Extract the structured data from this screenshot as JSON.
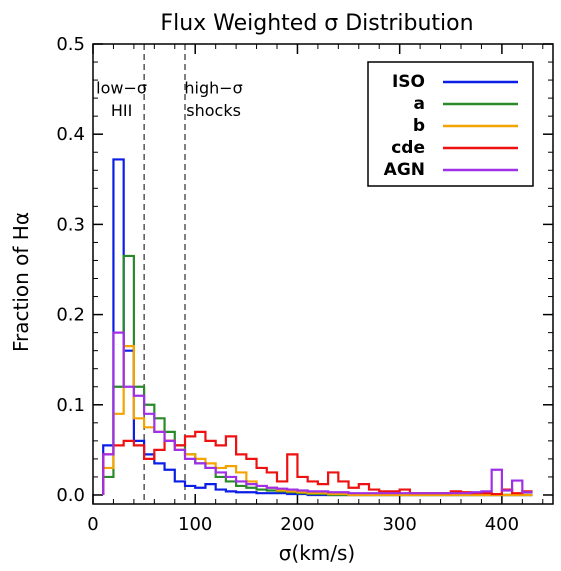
{
  "chart_data": {
    "type": "line",
    "title": "Flux Weighted σ Distribution",
    "xlabel": "σ(km/s)",
    "ylabel": "Fraction of Hα",
    "xlim": [
      0,
      450
    ],
    "ylim": [
      -0.01,
      0.5
    ],
    "x_ticks": [
      0,
      100,
      200,
      300,
      400
    ],
    "y_ticks": [
      0.0,
      0.1,
      0.2,
      0.3,
      0.4,
      0.5
    ],
    "x_tick_labels": [
      "0",
      "100",
      "200",
      "300",
      "400"
    ],
    "y_tick_labels": [
      "0.0",
      "0.1",
      "0.2",
      "0.3",
      "0.4",
      "0.5"
    ],
    "grid": false,
    "legend_position": "top-right",
    "step_style": "histogram-steps",
    "bin_width": 10,
    "bin_start": 10,
    "annotations": [
      {
        "text": "low−σ",
        "line2": "HII",
        "x": 28
      },
      {
        "text": "high−σ",
        "line2": "shocks",
        "x": 118
      }
    ],
    "reference_lines_x": [
      50,
      90
    ],
    "series": [
      {
        "name": "ISO",
        "color": "#0a1ee6",
        "values": [
          0.055,
          0.372,
          0.16,
          0.06,
          0.045,
          0.035,
          0.028,
          0.015,
          0.01,
          0.008,
          0.012,
          0.006,
          0.004,
          0.003,
          0.003,
          0.002,
          0.002,
          0.002,
          0.001,
          0.001,
          0.0,
          0.0,
          0.0,
          0.0,
          0.0,
          0.0,
          0.0,
          0.0,
          0.0,
          0.0,
          0.0,
          0.0,
          0.0,
          0.0,
          0.0,
          0.0,
          0.0,
          0.0,
          0.0,
          0.0,
          0.0,
          0.0
        ]
      },
      {
        "name": "a",
        "color": "#2a8a2a",
        "values": [
          0.02,
          0.12,
          0.265,
          0.12,
          0.1,
          0.085,
          0.07,
          0.055,
          0.045,
          0.035,
          0.03,
          0.02,
          0.015,
          0.01,
          0.008,
          0.006,
          0.005,
          0.004,
          0.003,
          0.002,
          0.001,
          0.001,
          0.0,
          0.0,
          0.0,
          0.0,
          0.0,
          0.0,
          0.0,
          0.0,
          0.0,
          0.0,
          0.0,
          0.0,
          0.0,
          0.0,
          0.0,
          0.0,
          0.0,
          0.0,
          0.0,
          0.0
        ]
      },
      {
        "name": "b",
        "color": "#f5a300",
        "values": [
          0.03,
          0.09,
          0.165,
          0.085,
          0.075,
          0.07,
          0.06,
          0.05,
          0.045,
          0.04,
          0.035,
          0.03,
          0.032,
          0.025,
          0.015,
          0.01,
          0.008,
          0.005,
          0.004,
          0.003,
          0.002,
          0.002,
          0.001,
          0.001,
          0.0,
          0.0,
          0.0,
          0.0,
          0.0,
          0.0,
          0.0,
          0.0,
          0.0,
          0.0,
          0.0,
          0.0,
          0.0,
          0.0,
          0.0,
          0.0,
          0.0,
          0.0
        ]
      },
      {
        "name": "cde",
        "color": "#ee1111",
        "values": [
          0.045,
          0.055,
          0.06,
          0.055,
          0.04,
          0.05,
          0.06,
          0.055,
          0.065,
          0.07,
          0.06,
          0.055,
          0.065,
          0.045,
          0.04,
          0.03,
          0.025,
          0.015,
          0.045,
          0.02,
          0.015,
          0.012,
          0.025,
          0.015,
          0.008,
          0.012,
          0.006,
          0.004,
          0.004,
          0.006,
          0.002,
          0.002,
          0.002,
          0.002,
          0.004,
          0.003,
          0.002,
          0.002,
          0.001,
          0.006,
          0.002,
          0.004
        ]
      },
      {
        "name": "AGN",
        "color": "#a030e6",
        "values": [
          0.045,
          0.18,
          0.12,
          0.11,
          0.09,
          0.07,
          0.06,
          0.05,
          0.04,
          0.035,
          0.03,
          0.025,
          0.02,
          0.015,
          0.012,
          0.01,
          0.008,
          0.007,
          0.006,
          0.005,
          0.004,
          0.004,
          0.003,
          0.003,
          0.002,
          0.002,
          0.002,
          0.002,
          0.002,
          0.002,
          0.002,
          0.002,
          0.002,
          0.002,
          0.002,
          0.002,
          0.003,
          0.004,
          0.028,
          0.005,
          0.016,
          0.003
        ]
      }
    ]
  }
}
